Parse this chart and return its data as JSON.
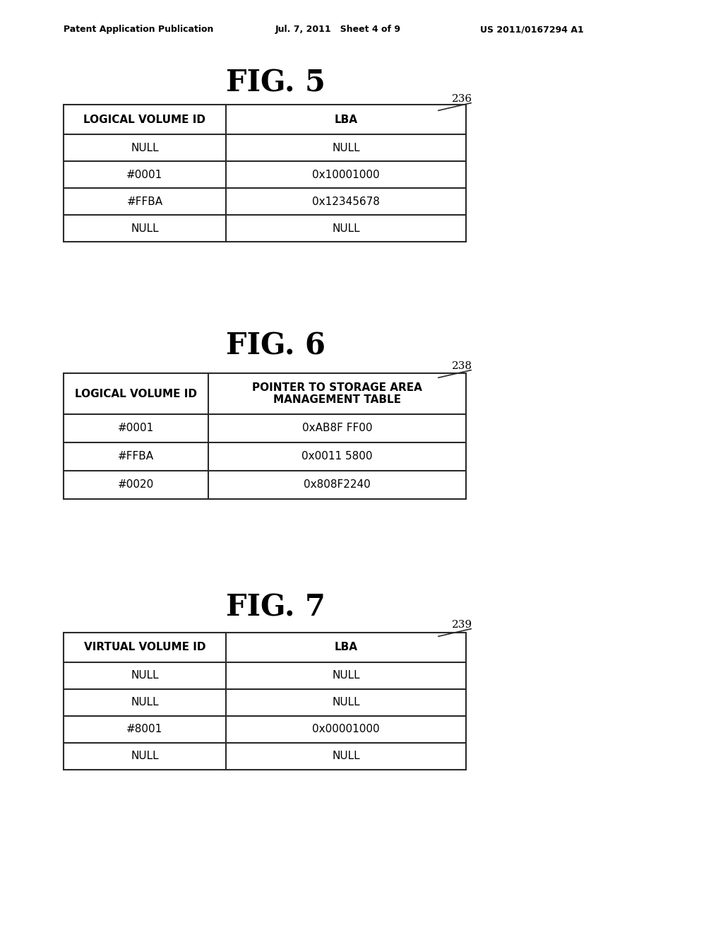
{
  "bg_color": "#ffffff",
  "header_text_left": "Patent Application Publication",
  "header_text_mid": "Jul. 7, 2011   Sheet 4 of 9",
  "header_text_right": "US 2011/0167294 A1",
  "fig5_title": "FIG. 5",
  "fig5_label": "236",
  "fig5_col1_header": "LOGICAL VOLUME ID",
  "fig5_col2_header": "LBA",
  "fig5_rows": [
    [
      "NULL",
      "NULL"
    ],
    [
      "#0001",
      "0x10001000"
    ],
    [
      "#FFBA",
      "0x12345678"
    ],
    [
      "NULL",
      "NULL"
    ]
  ],
  "fig6_title": "FIG. 6",
  "fig6_label": "238",
  "fig6_col1_header": "LOGICAL VOLUME ID",
  "fig6_col2_header": "POINTER TO STORAGE AREA\nMANAGEMENT TABLE",
  "fig6_rows": [
    [
      "#0001",
      "0xAB8F FF00"
    ],
    [
      "#FFBA",
      "0x0011 5800"
    ],
    [
      "#0020",
      "0x808F2240"
    ]
  ],
  "fig7_title": "FIG. 7",
  "fig7_label": "239",
  "fig7_col1_header": "VIRTUAL VOLUME ID",
  "fig7_col2_header": "LBA",
  "fig7_rows": [
    [
      "NULL",
      "NULL"
    ],
    [
      "NULL",
      "NULL"
    ],
    [
      "#8001",
      "0x00001000"
    ],
    [
      "NULL",
      "NULL"
    ]
  ],
  "title_fontsize": 30,
  "header_fontsize": 9,
  "cell_fontsize": 11,
  "label_fontsize": 11,
  "table_text_color": "#000000",
  "line_color": "#2a2a2a",
  "line_width": 1.5
}
